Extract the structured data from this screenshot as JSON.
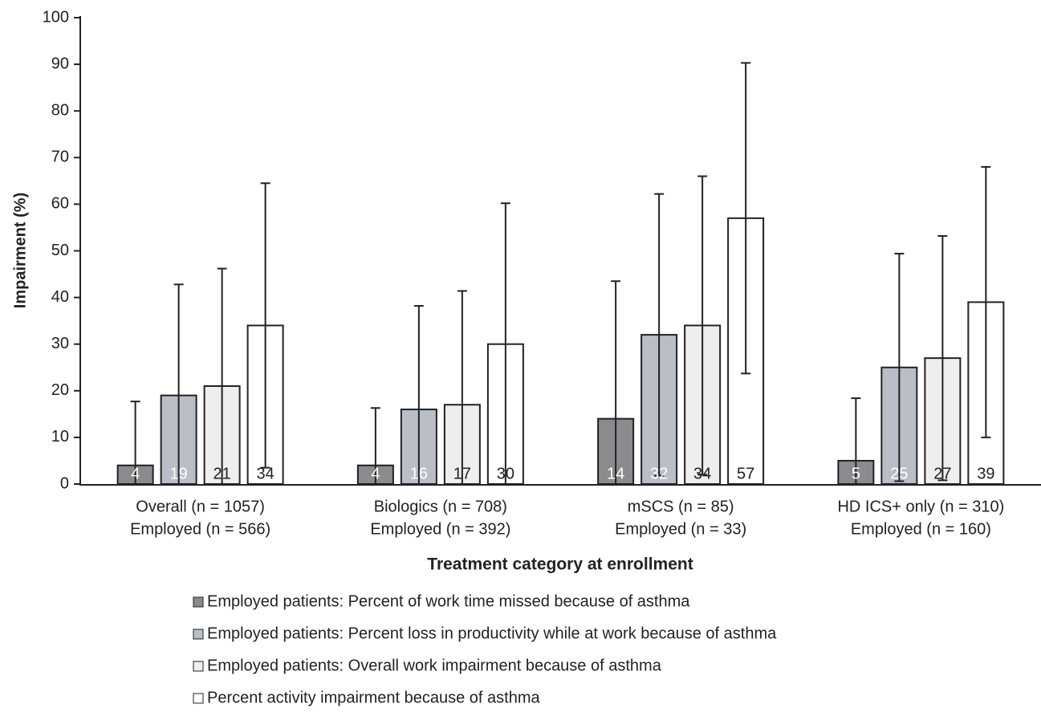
{
  "chart_data": {
    "type": "bar",
    "y_label": "Impairment (%)",
    "x_label": "Treatment category at enrollment",
    "categories": [
      [
        "Overall (n = 1057)",
        "Employed (n = 566)"
      ],
      [
        "Biologics (n = 708)",
        "Employed (n = 392)"
      ],
      [
        "mSCS (n = 85)",
        "Employed (n = 33)"
      ],
      [
        "HD ICS+ only (n = 310)",
        "Employed (n = 160)"
      ]
    ],
    "series": [
      {
        "name": "Employed patients: Percent of work time missed because of asthma",
        "color": "#8a8b8f",
        "label_color": "#ffffff",
        "values": [
          4,
          4,
          14,
          5
        ],
        "errors": [
          13.7,
          12.3,
          29.5,
          13.4
        ]
      },
      {
        "name": "Employed patients: Percent loss in productivity while at work because of asthma",
        "color": "#b9bec7",
        "label_color": "#ffffff",
        "values": [
          19,
          16,
          32,
          25
        ],
        "errors": [
          23.8,
          22.2,
          30.2,
          24.4
        ]
      },
      {
        "name": "Employed patients: Overall work impairment because of asthma",
        "color": "#efeded",
        "label_color": "#222222",
        "values": [
          21,
          17,
          34,
          27
        ],
        "errors": [
          25.2,
          24.4,
          32,
          26.2
        ]
      },
      {
        "name": "Percent activity impairment because of asthma",
        "color": "#ffffff",
        "label_color": "#222222",
        "values": [
          34,
          30,
          57,
          39
        ],
        "errors": [
          30.5,
          30.2,
          33.3,
          29
        ]
      }
    ],
    "ylim": [
      0,
      100
    ],
    "yticks": [
      0,
      10,
      20,
      30,
      40,
      50,
      60,
      70,
      80,
      90,
      100
    ],
    "grid": false
  }
}
